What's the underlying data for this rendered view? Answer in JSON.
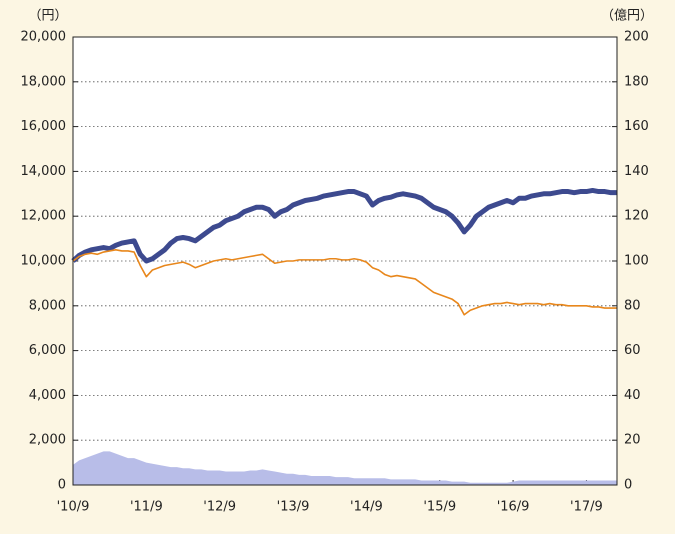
{
  "chart_data": {
    "type": "line",
    "y_unit": "（円）",
    "y2_unit": "（億円）",
    "categories": [
      "'10/9",
      null,
      null,
      null,
      null,
      null,
      null,
      null,
      null,
      null,
      null,
      null,
      "'11/9",
      null,
      null,
      null,
      null,
      null,
      null,
      null,
      null,
      null,
      null,
      null,
      "'12/9",
      null,
      null,
      null,
      null,
      null,
      null,
      null,
      null,
      null,
      null,
      null,
      "'13/9",
      null,
      null,
      null,
      null,
      null,
      null,
      null,
      null,
      null,
      null,
      null,
      "'14/9",
      null,
      null,
      null,
      null,
      null,
      null,
      null,
      null,
      null,
      null,
      null,
      "'15/9",
      null,
      null,
      null,
      null,
      null,
      null,
      null,
      null,
      null,
      null,
      null,
      "'16/9",
      null,
      null,
      null,
      null,
      null,
      null,
      null,
      null,
      null,
      null,
      null,
      "'17/9",
      null,
      null,
      null,
      null,
      null
    ],
    "series": [
      {
        "color": "#3d4a8f",
        "width": 5,
        "values": [
          10000,
          10250,
          10400,
          10500,
          10550,
          10600,
          10550,
          10700,
          10800,
          10850,
          10900,
          10300,
          10000,
          10100,
          10300,
          10500,
          10800,
          11000,
          11050,
          11000,
          10900,
          11100,
          11300,
          11500,
          11600,
          11800,
          11900,
          12000,
          12200,
          12300,
          12400,
          12400,
          12300,
          12000,
          12200,
          12300,
          12500,
          12600,
          12700,
          12750,
          12800,
          12900,
          12950,
          13000,
          13050,
          13100,
          13100,
          13000,
          12900,
          12500,
          12700,
          12800,
          12850,
          12950,
          13000,
          12950,
          12900,
          12800,
          12600,
          12400,
          12300,
          12200,
          12000,
          11700,
          11300,
          11600,
          12000,
          12200,
          12400,
          12500,
          12600,
          12700,
          12600,
          12800,
          12800,
          12900,
          12950,
          13000,
          13000,
          13050,
          13100,
          13100,
          13050,
          13100,
          13100,
          13150,
          13100,
          13100,
          13050,
          13050
        ]
      },
      {
        "color": "#e8871c",
        "width": 1.6,
        "values": [
          10000,
          10200,
          10300,
          10350,
          10300,
          10400,
          10450,
          10500,
          10450,
          10450,
          10400,
          9800,
          9300,
          9600,
          9700,
          9800,
          9850,
          9900,
          9950,
          9850,
          9700,
          9800,
          9900,
          10000,
          10050,
          10100,
          10050,
          10100,
          10150,
          10200,
          10250,
          10300,
          10100,
          9900,
          9950,
          10000,
          10000,
          10050,
          10050,
          10050,
          10050,
          10050,
          10100,
          10100,
          10050,
          10050,
          10100,
          10050,
          9950,
          9700,
          9600,
          9400,
          9300,
          9350,
          9300,
          9250,
          9200,
          9000,
          8800,
          8600,
          8500,
          8400,
          8300,
          8100,
          7600,
          7800,
          7900,
          8000,
          8050,
          8100,
          8100,
          8150,
          8100,
          8050,
          8100,
          8100,
          8100,
          8050,
          8100,
          8050,
          8050,
          8000,
          8000,
          8000,
          8000,
          7950,
          7950,
          7900,
          7900,
          7900
        ]
      },
      {
        "type": "area",
        "axis": "y2",
        "color": "#b8bde8",
        "values": [
          9,
          11,
          12,
          13,
          14,
          15,
          15,
          14,
          13,
          12,
          12,
          11,
          10,
          9.5,
          9,
          8.5,
          8,
          8,
          7.5,
          7.5,
          7,
          7,
          6.5,
          6.5,
          6.5,
          6,
          6,
          6,
          6,
          6.5,
          6.5,
          7,
          6.5,
          6,
          5.5,
          5,
          5,
          4.5,
          4.5,
          4,
          4,
          4,
          4,
          3.5,
          3.5,
          3.5,
          3,
          3,
          3,
          3,
          3,
          3,
          2.5,
          2.5,
          2.5,
          2.5,
          2.5,
          2,
          2,
          2,
          2,
          2,
          1.5,
          1.5,
          1.5,
          1,
          1,
          1,
          1,
          1,
          1,
          1,
          1.5,
          2,
          2,
          2,
          2,
          2,
          2,
          2,
          2,
          2,
          2,
          2,
          2,
          2,
          2,
          2,
          2,
          2
        ]
      }
    ],
    "ylim": [
      0,
      20000
    ],
    "yticks": [
      0,
      {
        "value": 2000,
        "label": "2,000"
      },
      {
        "value": 4000,
        "label": "4,000"
      },
      {
        "value": 6000,
        "label": "6,000"
      },
      {
        "value": 8000,
        "label": "8,000"
      },
      {
        "value": 10000,
        "label": "10,000"
      },
      {
        "value": 12000,
        "label": "12,000"
      },
      {
        "value": 14000,
        "label": "14,000"
      },
      {
        "value": 16000,
        "label": "16,000"
      },
      {
        "value": 18000,
        "label": "18,000"
      },
      {
        "value": 20000,
        "label": "20,000"
      }
    ],
    "y2lim": [
      0,
      200
    ],
    "y2ticks": [
      0,
      20,
      40,
      60,
      80,
      100,
      120,
      140,
      160,
      180,
      200
    ],
    "grid": true
  }
}
